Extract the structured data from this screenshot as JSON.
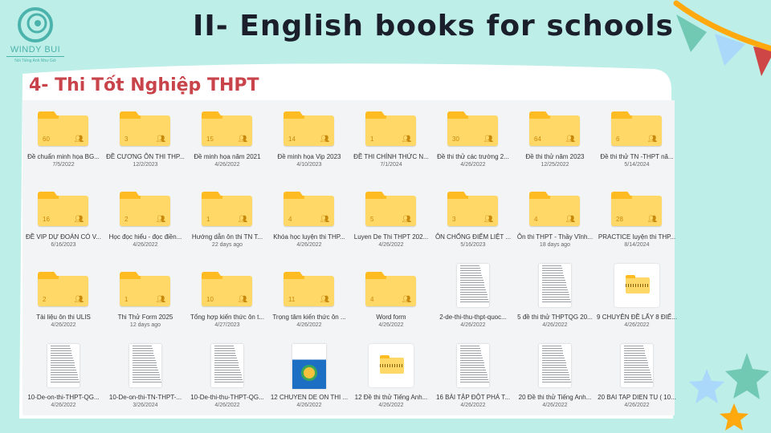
{
  "logo": {
    "brand": "WINDY BUI",
    "tagline": "Nói Tiếng Anh Như Gió"
  },
  "header": {
    "title": "II- English books for schools"
  },
  "section": {
    "title": "4- Thi Tốt Nghiệp THPT"
  },
  "colors": {
    "background": "#bdeee8",
    "title": "#1a1f2b",
    "section": "#c8434a",
    "folder": "#ffd867",
    "folder_tab": "#ffbb22"
  },
  "items": [
    {
      "type": "folder",
      "count": "60",
      "name": "Đề chuẩn minh họa BG...",
      "date": "7/5/2022"
    },
    {
      "type": "folder",
      "count": "3",
      "name": "ĐỀ CƯƠNG ÔN THI THP...",
      "date": "12/2/2023"
    },
    {
      "type": "folder",
      "count": "15",
      "name": "Đề minh họa năm 2021",
      "date": "4/26/2022"
    },
    {
      "type": "folder",
      "count": "14",
      "name": "Đề minh họa Vip 2023",
      "date": "4/10/2023"
    },
    {
      "type": "folder",
      "count": "1",
      "name": "ĐỀ THI CHÍNH THỨC N...",
      "date": "7/1/2024"
    },
    {
      "type": "folder",
      "count": "30",
      "name": "Đề thi thử các trường 2...",
      "date": "4/26/2022"
    },
    {
      "type": "folder",
      "count": "64",
      "name": "Đề thi thử năm 2023",
      "date": "12/25/2022"
    },
    {
      "type": "folder",
      "count": "6",
      "name": "Đề thi thử TN -THPT nă...",
      "date": "5/14/2024"
    },
    {
      "type": "folder",
      "count": "16",
      "name": "ĐỀ VIP DỰ ĐOÁN CÓ V...",
      "date": "6/16/2023"
    },
    {
      "type": "folder",
      "count": "2",
      "name": "Học đọc hiểu - đọc điền...",
      "date": "4/26/2022"
    },
    {
      "type": "folder",
      "count": "1",
      "name": "Hướng dẫn ôn thi TN T...",
      "date": "22 days ago"
    },
    {
      "type": "folder",
      "count": "4",
      "name": "Khóa học luyện thi THP...",
      "date": "4/26/2022"
    },
    {
      "type": "folder",
      "count": "5",
      "name": "Luyen De Thi THPT 202...",
      "date": "4/26/2022"
    },
    {
      "type": "folder",
      "count": "3",
      "name": "ÔN CHỐNG ĐIỂM LIỆT ...",
      "date": "5/16/2023"
    },
    {
      "type": "folder",
      "count": "4",
      "name": "Ôn thi THPT - Thầy Vĩnh...",
      "date": "18 days ago"
    },
    {
      "type": "folder",
      "count": "28",
      "name": "PRACTICE luyện thi THP...",
      "date": "8/14/2024"
    },
    {
      "type": "folder",
      "count": "2",
      "name": "Tài liệu ôn thi ULIS",
      "date": "4/26/2022"
    },
    {
      "type": "folder",
      "count": "1",
      "name": "Thi Thử Form 2025",
      "date": "12 days ago"
    },
    {
      "type": "folder",
      "count": "10",
      "name": "Tổng hợp kiến thức ôn t...",
      "date": "4/27/2023"
    },
    {
      "type": "folder",
      "count": "11",
      "name": "Trọng tâm kiến thức ôn ...",
      "date": "4/26/2022"
    },
    {
      "type": "folder",
      "count": "4",
      "name": "Word form",
      "date": "4/26/2022"
    },
    {
      "type": "document",
      "name": "2-de-thi-thu-thpt-quoc...",
      "date": "4/26/2022"
    },
    {
      "type": "document",
      "name": "5 đề thi thử THPTQG 20...",
      "date": "4/26/2022"
    },
    {
      "type": "zip",
      "name": "9 CHUYÊN ĐỀ LẤY 8 ĐIỂ...",
      "date": "4/26/2022"
    },
    {
      "type": "document",
      "name": "10-De-on-thi-THPT-QG...",
      "date": "4/26/2022"
    },
    {
      "type": "document",
      "name": "10-De-on-thi-TN-THPT-...",
      "date": "3/26/2024"
    },
    {
      "type": "document",
      "name": "10-De-thi-thu-THPT-QG...",
      "date": "4/26/2022"
    },
    {
      "type": "cover",
      "name": "12 CHUYEN DE ON THI ...",
      "date": "4/26/2022"
    },
    {
      "type": "zip",
      "name": "12 Đề thi thử Tiếng Anh...",
      "date": "4/26/2022"
    },
    {
      "type": "document",
      "name": "16 BÀI TẬP ĐỘT PHÁ T...",
      "date": "4/26/2022"
    },
    {
      "type": "document",
      "name": "20 Đề thi thử Tiếng Anh...",
      "date": "4/26/2022"
    },
    {
      "type": "document",
      "name": "20 BAI TAP DIEN TU ( 10...",
      "date": "4/26/2022"
    }
  ]
}
